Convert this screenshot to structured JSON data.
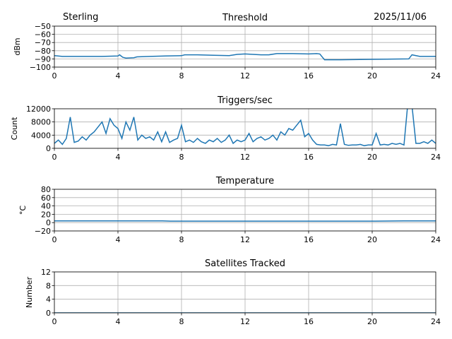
{
  "header": {
    "station": "Sterling",
    "date": "2025/11/06"
  },
  "chart_data": [
    {
      "type": "line",
      "title": "Threshold",
      "ylabel": "dBm",
      "xlim": [
        0,
        24
      ],
      "ylim": [
        -100,
        -50
      ],
      "xticks": [
        0,
        4,
        8,
        12,
        16,
        20,
        24
      ],
      "yticks": [
        -100,
        -90,
        -80,
        -70,
        -60,
        -50
      ],
      "ytick_labels": [
        "−100",
        "−90",
        "−80",
        "−70",
        "−60",
        "−50"
      ],
      "grid": true,
      "color": "#1f77b4",
      "x": [
        0,
        0.5,
        1,
        2,
        3,
        4,
        4.1,
        4.3,
        4.5,
        5,
        5.2,
        6,
        7,
        8,
        8.2,
        9,
        10,
        11,
        11.5,
        12,
        13,
        13.5,
        14,
        15,
        16,
        16.5,
        16.7,
        17,
        18,
        20,
        22.3,
        22.5,
        23,
        24
      ],
      "y": [
        -86,
        -87,
        -87,
        -87,
        -87,
        -86.5,
        -85,
        -88,
        -89,
        -88.5,
        -87.5,
        -87,
        -86.5,
        -86,
        -85,
        -85,
        -85.5,
        -86,
        -84.5,
        -84,
        -85,
        -85,
        -83.5,
        -83.5,
        -84,
        -83.5,
        -84,
        -91,
        -91,
        -90.5,
        -90,
        -85,
        -87,
        -87
      ]
    },
    {
      "type": "line",
      "title": "Triggers/sec",
      "ylabel": "Count",
      "xlim": [
        0,
        24
      ],
      "ylim": [
        0,
        12000
      ],
      "xticks": [
        0,
        4,
        8,
        12,
        16,
        20,
        24
      ],
      "yticks": [
        0,
        4000,
        8000,
        12000
      ],
      "ytick_labels": [
        "0",
        "4000",
        "8000",
        "12000"
      ],
      "grid": true,
      "color": "#1f77b4",
      "x_step": 0.25,
      "y": [
        1500,
        2500,
        1200,
        3000,
        9500,
        1800,
        2200,
        3500,
        2500,
        4000,
        5000,
        6500,
        8000,
        4500,
        9000,
        7000,
        6000,
        3000,
        8000,
        5500,
        9500,
        2500,
        4000,
        3000,
        3500,
        2500,
        5000,
        2000,
        5000,
        1800,
        2500,
        3000,
        7000,
        2000,
        2500,
        1800,
        3000,
        2000,
        1500,
        2500,
        2000,
        3000,
        1800,
        2500,
        4000,
        1500,
        2500,
        2000,
        2500,
        4500,
        2000,
        3000,
        3500,
        2500,
        3000,
        4000,
        2500,
        5000,
        4000,
        6000,
        5500,
        7000,
        8500,
        3500,
        4500,
        2500,
        1200,
        1000,
        1000,
        800,
        1200,
        1000,
        7500,
        1200,
        900,
        1000,
        1000,
        1200,
        800,
        1000,
        1000,
        4500,
        1000,
        1200,
        1000,
        1500,
        1200,
        1500,
        1000,
        14000,
        13000,
        1500,
        1500,
        2000,
        1500,
        2500,
        1500
      ]
    },
    {
      "type": "line",
      "title": "Temperature",
      "ylabel": "°C",
      "xlim": [
        0,
        24
      ],
      "ylim": [
        -20,
        80
      ],
      "xticks": [
        0,
        4,
        8,
        12,
        16,
        20,
        24
      ],
      "yticks": [
        -20,
        0,
        20,
        40,
        60,
        80
      ],
      "ytick_labels": [
        "−20",
        "0",
        "20",
        "40",
        "60",
        "80"
      ],
      "grid": true,
      "color": "#1f77b4",
      "x": [
        0,
        6.8,
        7.3,
        20.2,
        22,
        24
      ],
      "y": [
        4,
        4,
        3.5,
        3.5,
        4,
        4
      ]
    },
    {
      "type": "line",
      "title": "Satellites Tracked",
      "ylabel": "Number",
      "xlim": [
        0,
        24
      ],
      "ylim": [
        0,
        12
      ],
      "xticks": [
        0,
        4,
        8,
        12,
        16,
        20,
        24
      ],
      "yticks": [
        0,
        4,
        8,
        12
      ],
      "ytick_labels": [
        "0",
        "4",
        "8",
        "12"
      ],
      "grid": true,
      "color": "#1f77b4",
      "x": [
        0,
        24
      ],
      "y": [
        0,
        0
      ]
    }
  ]
}
